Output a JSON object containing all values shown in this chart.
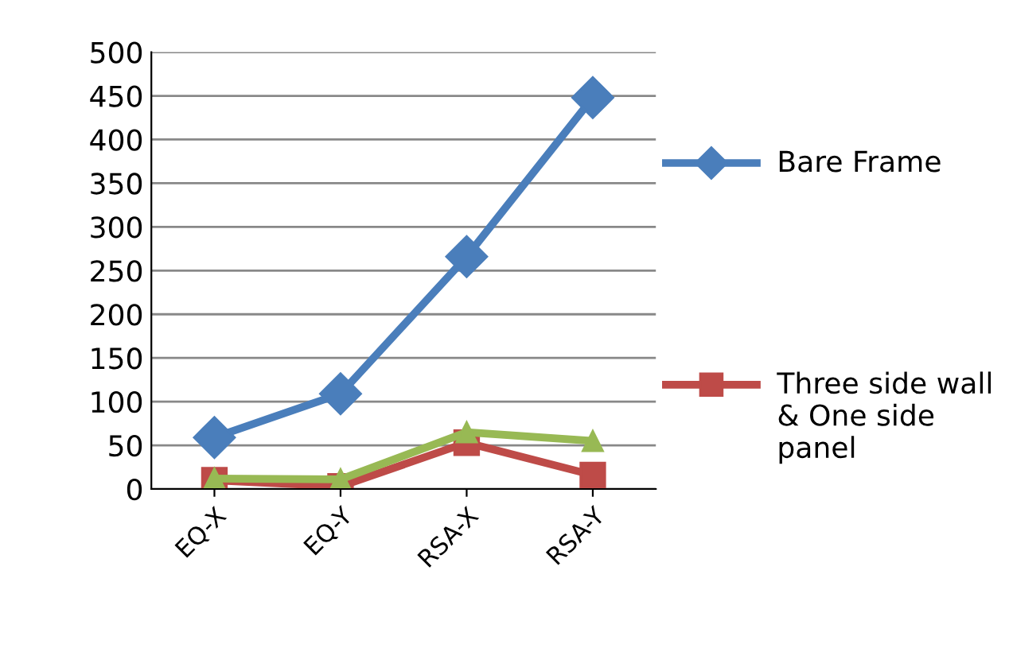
{
  "chart_data": {
    "type": "line",
    "categories": [
      "EQ-X",
      "EQ-Y",
      "RSA-X",
      "RSA-Y"
    ],
    "ylim": [
      0,
      500
    ],
    "yticks": [
      0,
      50,
      100,
      150,
      200,
      250,
      300,
      350,
      400,
      450,
      500
    ],
    "grid": "y",
    "legend": "right",
    "series": [
      {
        "name": "Bare Frame",
        "color": "#4a7ebb",
        "marker": "diamond",
        "values": [
          59,
          109,
          266,
          448
        ]
      },
      {
        "name": "Three side wall & One side panel",
        "color": "#be4b48",
        "marker": "square",
        "values": [
          10,
          3,
          53,
          16
        ]
      },
      {
        "color": "#98b954",
        "marker": "triangle",
        "values": [
          12,
          11,
          65,
          55
        ]
      }
    ]
  }
}
